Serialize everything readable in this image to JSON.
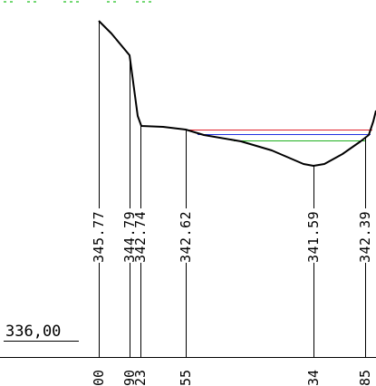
{
  "datum": {
    "label": "336,00"
  },
  "elevations": [
    "345.77",
    "344.79",
    "342.74",
    "342.62",
    "341.59",
    "342.39"
  ],
  "stations": [
    "00",
    "90",
    "23",
    "55",
    "34",
    "85"
  ],
  "colors": {
    "profile": "#000000",
    "water_red": "#e0202a",
    "water_blue": "#2030e0",
    "water_green": "#20b020",
    "top_annotation": "#20c020"
  }
}
